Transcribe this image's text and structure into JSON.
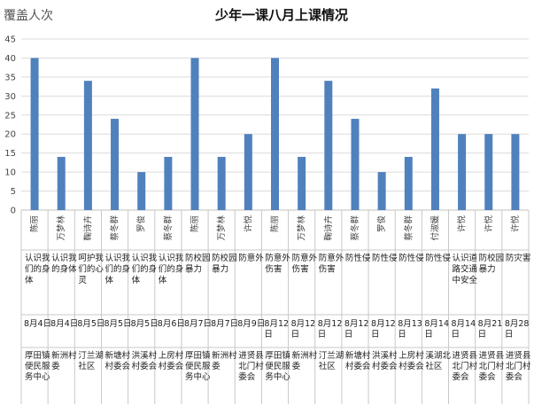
{
  "chart_data": {
    "type": "bar",
    "title": "少年一课八月上课情况",
    "ylabel": "覆盖人次",
    "ylim": [
      0,
      45
    ],
    "yticks": [
      0,
      5,
      10,
      15,
      20,
      25,
      30,
      35,
      40,
      45
    ],
    "grid": true,
    "bar_color": "#4f81bd",
    "categories": [
      "陈丽",
      "万梦林",
      "鞠诗卉",
      "蔡冬群",
      "罗俊",
      "蔡冬群",
      "陈丽",
      "万梦林",
      "许悦",
      "陈丽",
      "万梦林",
      "鞠诗卉",
      "蔡冬群",
      "罗俊",
      "蔡冬群",
      "付淑媛",
      "许悦",
      "许悦",
      "许悦"
    ],
    "values": [
      40,
      14,
      34,
      24,
      10,
      14,
      40,
      14,
      20,
      40,
      14,
      34,
      24,
      10,
      14,
      32,
      20,
      20,
      20
    ],
    "topics": [
      "认识我们的身体",
      "认识我的身体",
      "呵护我们的心灵",
      "认识我们的身体",
      "认识我们的身体",
      "认识我们的身体",
      "防校园暴力",
      "防校园暴力",
      "防意外",
      "防意外伤害",
      "防意外伤害",
      "防意外伤害",
      "防性侵",
      "防性侵",
      "防性侵",
      "防性侵",
      "认识道路交通中安全",
      "防校园暴力",
      "防灾害"
    ],
    "dates": [
      "8月4日",
      "8月4日",
      "8月5日",
      "8月5日",
      "8月5日",
      "8月6日",
      "8月7日",
      "8月7日",
      "8月9日",
      "8月12日",
      "8月12日",
      "8月12日",
      "8月12日",
      "8月12日",
      "8月13日",
      "8月14日",
      "8月14日",
      "8月21日",
      "8月28日"
    ],
    "locations": [
      "厚田镇便民服务中心",
      "新洲村委",
      "汀兰湖社区",
      "新塘村村委会",
      "洪溪村村委会",
      "上房村村委会",
      "厚田镇便民服务中心",
      "新洲村委",
      "进贤县北门村委会",
      "厚田镇便民服务中心",
      "新洲村委",
      "汀兰湖社区",
      "新塘村村委会",
      "洪溪村村委会",
      "上房村村委会",
      "溪湖北社区",
      "进贤县北门村委会",
      "进贤县北门村委会",
      "进贤县北门村委会"
    ]
  }
}
